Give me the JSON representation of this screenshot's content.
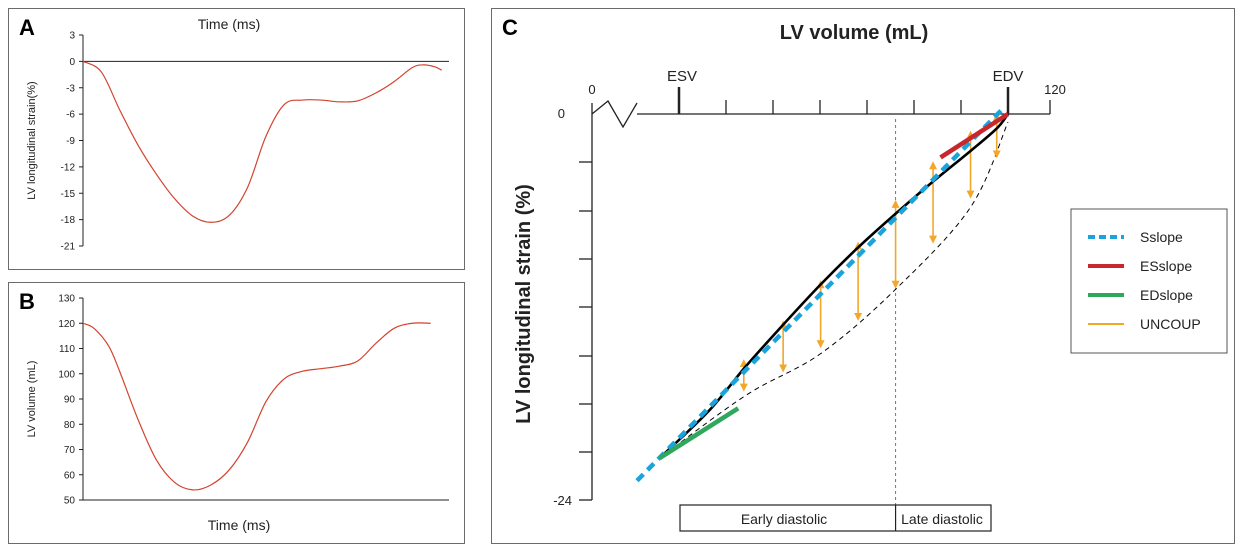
{
  "chart_data": [
    {
      "panel": "A",
      "type": "line",
      "xlabel": "Time (ms)",
      "ylabel": "LV longitudinal strain(%)",
      "yticks": [
        3,
        0,
        -3,
        -6,
        -9,
        -12,
        -15,
        -18,
        -21
      ],
      "ylim": [
        -21,
        3
      ],
      "xlim": [
        0,
        100
      ],
      "zero_line": true,
      "series": [
        {
          "color": "#d2442f",
          "x": [
            0,
            5,
            10,
            15,
            20,
            25,
            30,
            35,
            40,
            45,
            50,
            55,
            60,
            65,
            70,
            75,
            80,
            85,
            90,
            93,
            96,
            98
          ],
          "y": [
            0,
            -1.2,
            -5.5,
            -9.5,
            -12.8,
            -15.6,
            -17.6,
            -18.3,
            -17.5,
            -14.3,
            -8.5,
            -4.9,
            -4.4,
            -4.4,
            -4.6,
            -4.5,
            -3.6,
            -2.3,
            -0.7,
            -0.4,
            -0.6,
            -1.0
          ]
        }
      ]
    },
    {
      "panel": "B",
      "type": "line",
      "xlabel": "Time (ms)",
      "ylabel": "LV volume (mL)",
      "yticks": [
        130,
        120,
        110,
        100,
        90,
        80,
        70,
        60,
        50
      ],
      "ylim": [
        50,
        130
      ],
      "xlim": [
        0,
        100
      ],
      "series": [
        {
          "color": "#d2442f",
          "x": [
            0,
            3,
            7,
            10,
            15,
            20,
            25,
            30,
            35,
            40,
            45,
            50,
            55,
            60,
            65,
            70,
            75,
            80,
            85,
            90,
            95
          ],
          "y": [
            120,
            118,
            111,
            101,
            82,
            66,
            57,
            54,
            56,
            62,
            73,
            89,
            98,
            101,
            102,
            103,
            105,
            112,
            118,
            120,
            120
          ]
        }
      ]
    },
    {
      "panel": "C",
      "type": "line",
      "title": "LV volume (mL)",
      "ylabel": "LV longitudinal strain (%)",
      "x_tick_labels": [
        "0",
        "ESV",
        "EDV",
        "120"
      ],
      "y_tick_labels": [
        "0",
        "-24"
      ],
      "phase_labels": [
        "Early diastolic",
        "Late diastolic"
      ],
      "series": [
        {
          "name": "Sslope",
          "color": "#1ba3dc",
          "style": "dashed",
          "x": [
            21,
            118.5
          ],
          "y": [
            -22.8,
            0.3
          ]
        },
        {
          "name": "ESslope",
          "color": "#c8272d",
          "style": "solid",
          "x": [
            102,
            120
          ],
          "y": [
            -2.7,
            0
          ]
        },
        {
          "name": "EDslope",
          "color": "#2fa85e",
          "style": "solid",
          "x": [
            27,
            48
          ],
          "y": [
            -21.4,
            -18.3
          ]
        },
        {
          "name": "UNCOUP",
          "color": "#f2a72a",
          "style": "arrows",
          "x": [
            49.5,
            60,
            70,
            80,
            90,
            100,
            110,
            117
          ],
          "y_top": [
            -15.3,
            -12.9,
            -10.4,
            -8.0,
            -5.4,
            -3.0,
            -1.1,
            0.0
          ],
          "y_bottom": [
            -17.2,
            -16.0,
            -14.5,
            -12.8,
            -10.8,
            -8.0,
            -5.2,
            -2.7
          ]
        },
        {
          "name": "",
          "color": "#000000",
          "style": "solid",
          "x": [
            27,
            40,
            50,
            60,
            70,
            80,
            90,
            100,
            110,
            117,
            120
          ],
          "y": [
            -21.4,
            -18.5,
            -15.7,
            -13.1,
            -10.6,
            -8.3,
            -6.2,
            -4.2,
            -2.3,
            -0.9,
            0
          ]
        },
        {
          "name": "",
          "color": "#000000",
          "style": "thin-dashed",
          "x": [
            27,
            50,
            70,
            90,
            110,
            120
          ],
          "y": [
            -21.4,
            -17.5,
            -14.9,
            -10.9,
            -5.8,
            -0.5
          ]
        }
      ],
      "late_diastole_boundary_x": 90,
      "legend_placement": "right"
    }
  ]
}
